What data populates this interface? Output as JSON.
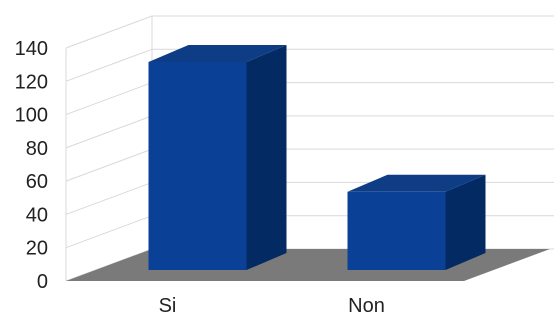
{
  "chart_data": {
    "type": "bar",
    "title": "",
    "xlabel": "",
    "ylabel": "",
    "categories": [
      "Si",
      "Non"
    ],
    "values": [
      125,
      47
    ],
    "ylim": [
      0,
      140
    ],
    "yticks": [
      0,
      20,
      40,
      60,
      80,
      100,
      120,
      140
    ],
    "grid": true,
    "legend": "none",
    "style": "3d",
    "colors": {
      "bar_front": "#0a4196",
      "bar_side": "#042a64",
      "bar_top": "#0e3d86",
      "floor": "#7a7a7a",
      "grid": "#d9d9d9"
    }
  }
}
